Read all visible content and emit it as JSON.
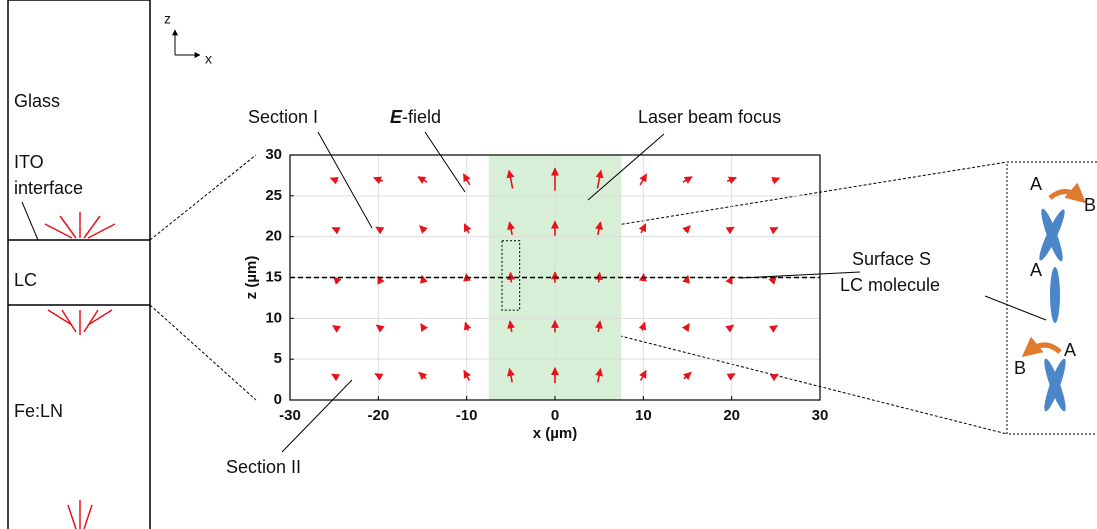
{
  "chart_data": {
    "type": "quiver",
    "xlabel": "x (µm)",
    "ylabel": "z (µm)",
    "xlim": [
      -30,
      30
    ],
    "xticks": [
      -30,
      -20,
      -10,
      0,
      10,
      20,
      30
    ],
    "ylim": [
      0,
      30
    ],
    "yticks": [
      0,
      5,
      10,
      15,
      20,
      25,
      30
    ],
    "grid": true,
    "color": "#e8121b",
    "beam_xlim": [
      -7.5,
      7.5
    ],
    "beam_color": "#d6efd6",
    "surface_z": 15,
    "zoom_box": {
      "xlim": [
        -6,
        -4
      ],
      "ylim": [
        11,
        19.5
      ]
    },
    "x": [
      -25,
      -20,
      -15,
      -10,
      -5,
      0,
      5,
      10,
      15,
      20,
      25
    ],
    "z": [
      3,
      9,
      15,
      21,
      27
    ],
    "u": [
      [
        -0.5,
        -0.7,
        -0.8,
        -0.6,
        -0.3,
        0,
        0.3,
        0.6,
        0.8,
        0.7,
        0.5
      ],
      [
        -0.3,
        -0.4,
        -0.4,
        -0.3,
        -0.2,
        0,
        0.2,
        0.3,
        0.4,
        0.4,
        0.3
      ],
      [
        -0.1,
        -0.1,
        -0.1,
        -0.1,
        -0.1,
        0,
        0.1,
        0.1,
        0.1,
        0.1,
        0.1
      ],
      [
        -0.4,
        -0.5,
        -0.6,
        -0.5,
        -0.3,
        0,
        0.3,
        0.5,
        0.6,
        0.5,
        0.4
      ],
      [
        -0.8,
        -1.0,
        -1.0,
        -0.7,
        -0.4,
        0,
        0.4,
        0.7,
        1.0,
        1.0,
        0.8
      ]
    ],
    "w": [
      [
        0.3,
        0.4,
        0.7,
        1.1,
        1.5,
        1.7,
        1.5,
        1.1,
        0.7,
        0.4,
        0.3
      ],
      [
        0.2,
        0.3,
        0.6,
        0.9,
        1.2,
        1.3,
        1.2,
        0.9,
        0.6,
        0.3,
        0.2
      ],
      [
        0.1,
        0.2,
        0.4,
        0.8,
        1.1,
        1.2,
        1.1,
        0.8,
        0.4,
        0.2,
        0.1
      ],
      [
        0.2,
        0.3,
        0.6,
        1.0,
        1.4,
        1.6,
        1.4,
        1.0,
        0.6,
        0.3,
        0.2
      ],
      [
        0.3,
        0.4,
        0.6,
        1.2,
        2.0,
        2.5,
        2.0,
        1.2,
        0.6,
        0.4,
        0.3
      ]
    ],
    "annotations": {
      "section_1": "Section I",
      "efield_symbol": "E",
      "efield_text": "-field",
      "laser": "Laser beam focus",
      "surface": "Surface S",
      "lc_molecule": "LC molecule",
      "section_2": "Section II"
    },
    "layers": {
      "glass": "Glass",
      "ito": [
        "ITO",
        "interface"
      ],
      "lc": "LC",
      "feln": "Fe:LN"
    },
    "axes_indicator": {
      "z": "z",
      "x": "x"
    },
    "molecule_labels": {
      "top_a": "A",
      "top_b": "B",
      "mid_a": "A",
      "bot_b": "B",
      "bot_a": "A"
    }
  }
}
